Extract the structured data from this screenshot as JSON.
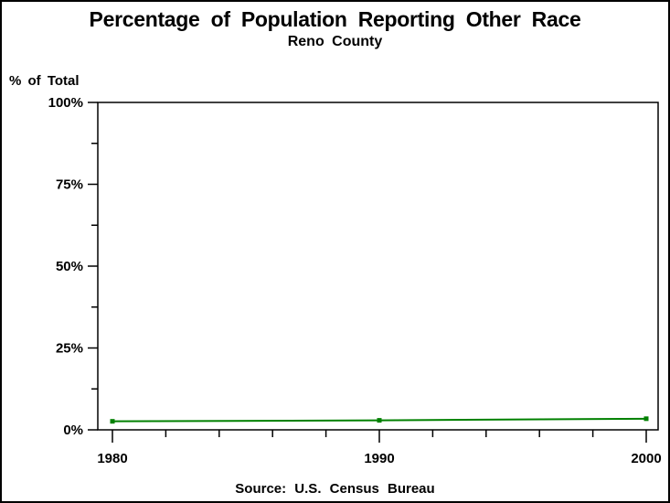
{
  "title": "Percentage of Population Reporting Other Race",
  "subtitle": "Reno County",
  "y_axis_label": "% of Total",
  "source_note": "Source: U.S. Census Bureau",
  "chart_data": {
    "type": "line",
    "title": "Percentage of Population Reporting Other Race",
    "subtitle": "Reno County",
    "ylabel": "% of Total",
    "x": [
      1980,
      1990,
      2000
    ],
    "series": [
      {
        "name": "Percent of population reporting Other Race",
        "values": [
          2.6,
          2.9,
          3.4
        ]
      }
    ],
    "xlim": [
      1980,
      2000
    ],
    "ylim": [
      0,
      100
    ],
    "y_major_ticks": [
      {
        "value": 0,
        "label": "0%"
      },
      {
        "value": 25,
        "label": "25%"
      },
      {
        "value": 50,
        "label": "50%"
      },
      {
        "value": 75,
        "label": "75%"
      },
      {
        "value": 100,
        "label": "100%"
      }
    ],
    "y_minor_ticks": [
      12.5,
      37.5,
      62.5,
      87.5
    ],
    "x_major_ticks": [
      {
        "value": 1980,
        "label": "1980"
      },
      {
        "value": 1990,
        "label": "1990"
      },
      {
        "value": 2000,
        "label": "2000"
      }
    ],
    "x_minor_ticks": [
      1982,
      1984,
      1986,
      1988,
      1992,
      1994,
      1996,
      1998
    ],
    "grid": false,
    "legend": "none",
    "line_color": "#008000",
    "marker": "square",
    "source": "Source: U.S. Census Bureau"
  }
}
